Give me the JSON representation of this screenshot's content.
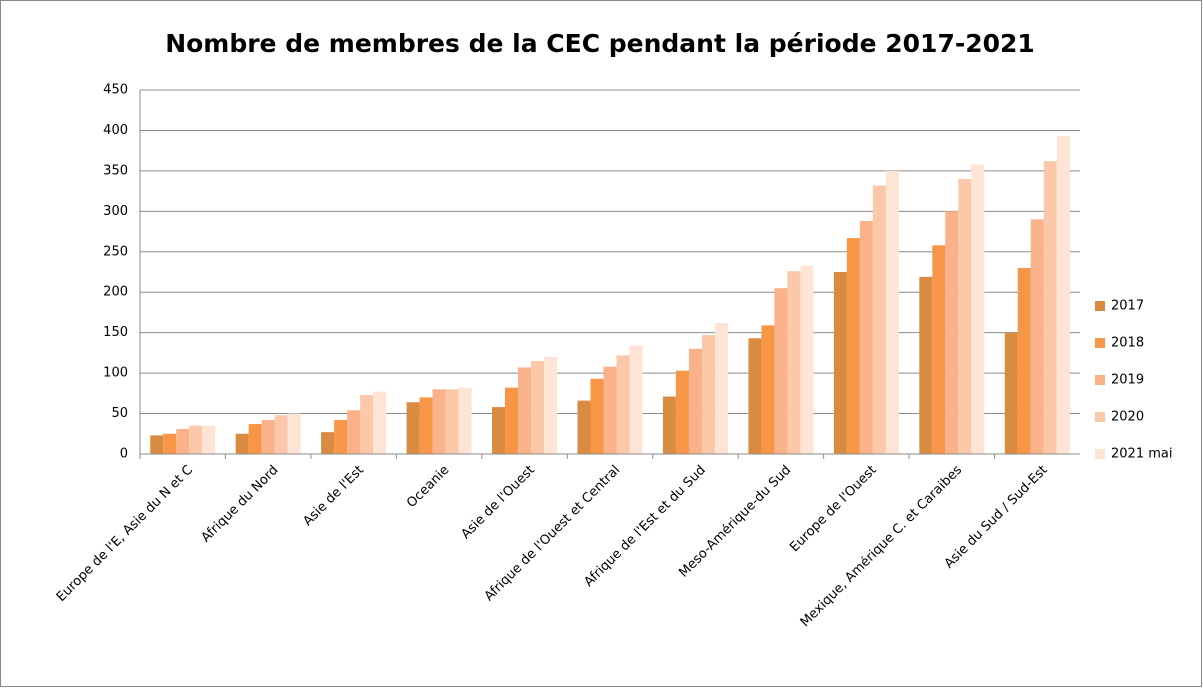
{
  "chart_data": {
    "type": "bar",
    "title": "Nombre de membres de la CEC pendant la période 2017-2021",
    "categories": [
      "Europe de l'E, Asie du N et C",
      "Afrique du Nord",
      "Asie de l'Est",
      "Oceanie",
      "Asie de l'Ouest",
      "Afrique de l'Ouest et Central",
      "Afrique de l'Est et du Sud",
      "Meso-Amérique-du Sud",
      "Europe de l'Ouest",
      "Mexique, Amérique C. et Caraibes",
      "Asie du Sud / Sud-Est"
    ],
    "series": [
      {
        "name": "2017",
        "color": "#d98b42",
        "values": [
          23,
          25,
          27,
          64,
          58,
          66,
          71,
          143,
          225,
          219,
          150
        ]
      },
      {
        "name": "2018",
        "color": "#f79646",
        "values": [
          25,
          37,
          42,
          70,
          82,
          93,
          103,
          159,
          267,
          258,
          230
        ]
      },
      {
        "name": "2019",
        "color": "#f9b28a",
        "values": [
          31,
          42,
          54,
          80,
          107,
          108,
          130,
          205,
          288,
          300,
          290
        ]
      },
      {
        "name": "2020",
        "color": "#fbc8aa",
        "values": [
          35,
          48,
          73,
          80,
          115,
          122,
          147,
          226,
          332,
          340,
          362
        ]
      },
      {
        "name": "2021 mai",
        "color": "#fde4d4",
        "values": [
          35,
          50,
          77,
          82,
          120,
          134,
          162,
          233,
          350,
          358,
          393
        ]
      }
    ],
    "ylim": [
      0,
      450
    ],
    "yticks": [
      0,
      50,
      100,
      150,
      200,
      250,
      300,
      350,
      400,
      450
    ],
    "grid": true,
    "legend": "right"
  }
}
